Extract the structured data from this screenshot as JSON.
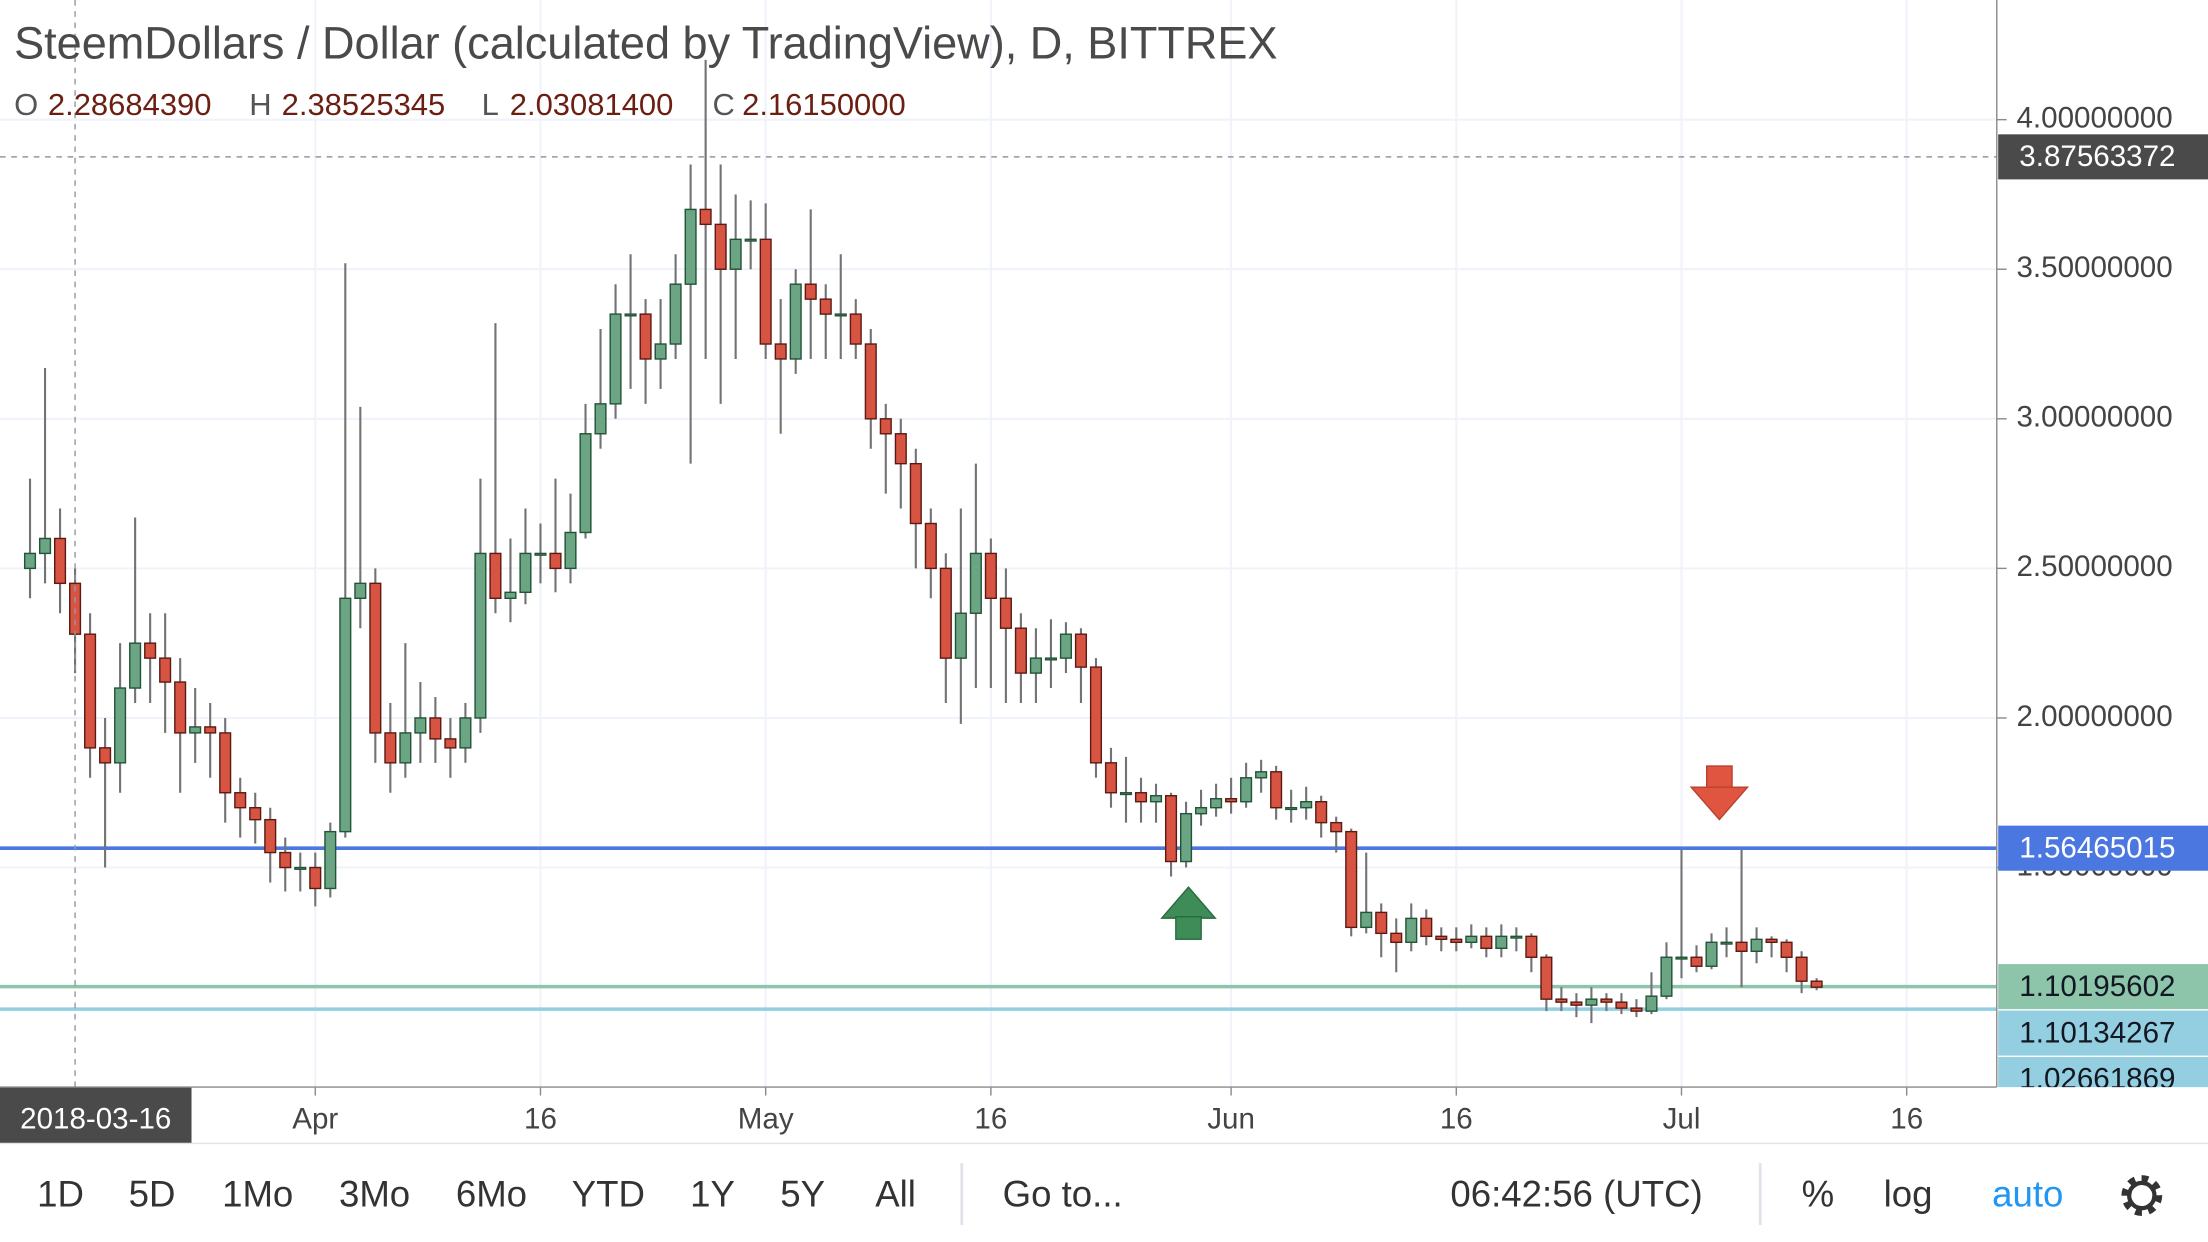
{
  "chart_data": {
    "type": "candlestick",
    "title": "SteemDollars / Dollar (calculated by TradingView), D, BITTREX",
    "ohlc_legend": {
      "labels": [
        "O",
        "H",
        "L",
        "C"
      ],
      "values": [
        {
          "value": 2.2868439,
          "label": "2.28684390"
        },
        {
          "value": 2.38525345,
          "label": "2.38525345"
        },
        {
          "value": 2.030814,
          "label": "2.03081400"
        },
        {
          "value": 2.1615,
          "label": "2.16150000"
        }
      ]
    },
    "x": [
      "2018-03-13",
      "2018-03-14",
      "2018-03-15",
      "2018-03-16",
      "2018-03-17",
      "2018-03-18",
      "2018-03-19",
      "2018-03-20",
      "2018-03-21",
      "2018-03-22",
      "2018-03-23",
      "2018-03-24",
      "2018-03-25",
      "2018-03-26",
      "2018-03-27",
      "2018-03-28",
      "2018-03-29",
      "2018-03-30",
      "2018-03-31",
      "2018-04-01",
      "2018-04-02",
      "2018-04-03",
      "2018-04-04",
      "2018-04-05",
      "2018-04-06",
      "2018-04-07",
      "2018-04-08",
      "2018-04-09",
      "2018-04-10",
      "2018-04-11",
      "2018-04-12",
      "2018-04-13",
      "2018-04-14",
      "2018-04-15",
      "2018-04-16",
      "2018-04-17",
      "2018-04-18",
      "2018-04-19",
      "2018-04-20",
      "2018-04-21",
      "2018-04-22",
      "2018-04-23",
      "2018-04-24",
      "2018-04-25",
      "2018-04-26",
      "2018-04-27",
      "2018-04-28",
      "2018-04-29",
      "2018-04-30",
      "2018-05-01",
      "2018-05-02",
      "2018-05-03",
      "2018-05-04",
      "2018-05-05",
      "2018-05-06",
      "2018-05-07",
      "2018-05-08",
      "2018-05-09",
      "2018-05-10",
      "2018-05-11",
      "2018-05-12",
      "2018-05-13",
      "2018-05-14",
      "2018-05-15",
      "2018-05-16",
      "2018-05-17",
      "2018-05-18",
      "2018-05-19",
      "2018-05-20",
      "2018-05-21",
      "2018-05-22",
      "2018-05-23",
      "2018-05-24",
      "2018-05-25",
      "2018-05-26",
      "2018-05-27",
      "2018-05-28",
      "2018-05-29",
      "2018-05-30",
      "2018-05-31",
      "2018-06-01",
      "2018-06-02",
      "2018-06-03",
      "2018-06-04",
      "2018-06-05",
      "2018-06-06",
      "2018-06-07",
      "2018-06-08",
      "2018-06-09",
      "2018-06-10",
      "2018-06-11",
      "2018-06-12",
      "2018-06-13",
      "2018-06-14",
      "2018-06-15",
      "2018-06-16",
      "2018-06-17",
      "2018-06-18",
      "2018-06-19",
      "2018-06-20",
      "2018-06-21",
      "2018-06-22",
      "2018-06-23",
      "2018-06-24",
      "2018-06-25",
      "2018-06-26",
      "2018-06-27",
      "2018-06-28",
      "2018-06-29",
      "2018-06-30",
      "2018-07-01",
      "2018-07-02",
      "2018-07-03",
      "2018-07-04",
      "2018-07-05",
      "2018-07-06",
      "2018-07-07",
      "2018-07-08",
      "2018-07-09",
      "2018-07-10"
    ],
    "open": [
      2.5,
      2.55,
      2.6,
      2.45,
      2.28,
      1.9,
      1.85,
      2.1,
      2.25,
      2.2,
      2.12,
      1.95,
      1.97,
      1.95,
      1.75,
      1.7,
      1.66,
      1.55,
      1.5,
      1.5,
      1.43,
      1.62,
      2.4,
      2.45,
      1.95,
      1.85,
      1.95,
      2.0,
      1.93,
      1.9,
      2.0,
      2.55,
      2.4,
      2.42,
      2.55,
      2.55,
      2.5,
      2.62,
      2.95,
      3.05,
      3.35,
      3.35,
      3.2,
      3.25,
      3.45,
      3.7,
      3.65,
      3.5,
      3.6,
      3.6,
      3.25,
      3.2,
      3.45,
      3.4,
      3.35,
      3.35,
      3.25,
      3.0,
      2.95,
      2.85,
      2.65,
      2.5,
      2.2,
      2.35,
      2.55,
      2.4,
      2.3,
      2.15,
      2.2,
      2.2,
      2.28,
      2.17,
      1.85,
      1.75,
      1.75,
      1.72,
      1.74,
      1.52,
      1.68,
      1.7,
      1.73,
      1.72,
      1.8,
      1.82,
      1.7,
      1.7,
      1.72,
      1.65,
      1.62,
      1.3,
      1.35,
      1.28,
      1.25,
      1.33,
      1.27,
      1.26,
      1.25,
      1.27,
      1.23,
      1.27,
      1.27,
      1.2,
      1.06,
      1.05,
      1.04,
      1.06,
      1.05,
      1.03,
      1.02,
      1.07,
      1.2,
      1.2,
      1.17,
      1.25,
      1.25,
      1.22,
      1.26,
      1.25,
      1.2,
      1.12
    ],
    "high": [
      2.8,
      3.17,
      2.7,
      2.5,
      2.35,
      2.0,
      2.25,
      2.67,
      2.35,
      2.35,
      2.2,
      2.1,
      2.05,
      2.0,
      1.8,
      1.75,
      1.7,
      1.6,
      1.55,
      1.55,
      1.65,
      3.52,
      3.04,
      2.5,
      2.05,
      2.25,
      2.12,
      2.07,
      2.0,
      2.05,
      2.8,
      3.32,
      2.6,
      2.7,
      2.65,
      2.8,
      2.75,
      3.05,
      3.3,
      3.45,
      3.55,
      3.4,
      3.4,
      3.55,
      3.85,
      4.2,
      3.85,
      3.75,
      3.73,
      3.72,
      3.4,
      3.5,
      3.7,
      3.45,
      3.55,
      3.4,
      3.3,
      3.05,
      3.0,
      2.9,
      2.7,
      2.55,
      2.7,
      2.85,
      2.6,
      2.5,
      2.35,
      2.3,
      2.33,
      2.32,
      2.3,
      2.2,
      1.9,
      1.87,
      1.8,
      1.78,
      1.75,
      1.72,
      1.76,
      1.78,
      1.8,
      1.85,
      1.86,
      1.84,
      1.76,
      1.77,
      1.74,
      1.67,
      1.63,
      1.55,
      1.38,
      1.33,
      1.38,
      1.36,
      1.3,
      1.3,
      1.31,
      1.3,
      1.31,
      1.3,
      1.28,
      1.21,
      1.1,
      1.08,
      1.1,
      1.08,
      1.08,
      1.06,
      1.15,
      1.25,
      1.56,
      1.24,
      1.28,
      1.3,
      1.56,
      1.3,
      1.27,
      1.26,
      1.22,
      1.13
    ],
    "low": [
      2.4,
      2.45,
      2.35,
      2.15,
      1.8,
      1.5,
      1.75,
      2.05,
      2.05,
      1.95,
      1.75,
      1.85,
      1.8,
      1.65,
      1.6,
      1.58,
      1.45,
      1.42,
      1.42,
      1.37,
      1.4,
      1.6,
      2.3,
      1.85,
      1.75,
      1.8,
      1.85,
      1.85,
      1.8,
      1.85,
      1.95,
      2.35,
      2.32,
      2.38,
      2.45,
      2.42,
      2.45,
      2.6,
      2.9,
      3.0,
      3.1,
      3.05,
      3.1,
      3.2,
      2.85,
      3.2,
      3.05,
      3.2,
      3.5,
      3.2,
      2.95,
      3.15,
      3.2,
      3.2,
      3.2,
      3.2,
      2.9,
      2.75,
      2.7,
      2.5,
      2.4,
      2.05,
      1.98,
      2.1,
      2.1,
      2.05,
      2.05,
      2.05,
      2.1,
      2.15,
      2.05,
      1.8,
      1.7,
      1.65,
      1.65,
      1.65,
      1.47,
      1.5,
      1.64,
      1.67,
      1.68,
      1.7,
      1.75,
      1.66,
      1.65,
      1.66,
      1.6,
      1.55,
      1.27,
      1.28,
      1.2,
      1.15,
      1.22,
      1.24,
      1.22,
      1.22,
      1.23,
      1.2,
      1.2,
      1.22,
      1.15,
      1.02,
      1.02,
      1.0,
      0.98,
      1.02,
      1.01,
      1.0,
      1.01,
      1.06,
      1.13,
      1.15,
      1.16,
      1.2,
      1.1,
      1.18,
      1.2,
      1.15,
      1.08,
      1.09
    ],
    "close": [
      2.55,
      2.6,
      2.45,
      2.28,
      1.9,
      1.85,
      2.1,
      2.25,
      2.2,
      2.12,
      1.95,
      1.97,
      1.95,
      1.75,
      1.7,
      1.66,
      1.55,
      1.5,
      1.5,
      1.43,
      1.62,
      2.4,
      2.45,
      1.95,
      1.85,
      1.95,
      2.0,
      1.93,
      1.9,
      2.0,
      2.55,
      2.4,
      2.42,
      2.55,
      2.55,
      2.5,
      2.62,
      2.95,
      3.05,
      3.35,
      3.35,
      3.2,
      3.25,
      3.45,
      3.7,
      3.65,
      3.5,
      3.6,
      3.6,
      3.25,
      3.2,
      3.45,
      3.4,
      3.35,
      3.35,
      3.25,
      3.0,
      2.95,
      2.85,
      2.65,
      2.5,
      2.2,
      2.35,
      2.55,
      2.4,
      2.3,
      2.15,
      2.2,
      2.2,
      2.28,
      2.17,
      1.85,
      1.75,
      1.75,
      1.72,
      1.74,
      1.52,
      1.68,
      1.7,
      1.73,
      1.72,
      1.8,
      1.82,
      1.7,
      1.7,
      1.72,
      1.65,
      1.62,
      1.3,
      1.35,
      1.28,
      1.25,
      1.33,
      1.27,
      1.26,
      1.25,
      1.27,
      1.23,
      1.27,
      1.27,
      1.2,
      1.06,
      1.05,
      1.04,
      1.06,
      1.05,
      1.03,
      1.02,
      1.07,
      1.2,
      1.2,
      1.17,
      1.25,
      1.25,
      1.22,
      1.26,
      1.25,
      1.2,
      1.12,
      1.1
    ],
    "up_color": "#6ba583",
    "up_border": "#225437",
    "down_color": "#d75442",
    "down_border": "#5b1a13",
    "wick_color": "#737375",
    "xlim": [
      "2018-03-11",
      "2018-07-22"
    ],
    "xticks": [
      {
        "value": "2018-04-01",
        "label": "Apr"
      },
      {
        "value": "2018-04-16",
        "label": "16"
      },
      {
        "value": "2018-05-01",
        "label": "May"
      },
      {
        "value": "2018-05-16",
        "label": "16"
      },
      {
        "value": "2018-06-01",
        "label": "Jun"
      },
      {
        "value": "2018-06-16",
        "label": "16"
      },
      {
        "value": "2018-07-01",
        "label": "Jul"
      },
      {
        "value": "2018-07-16",
        "label": "16"
      }
    ],
    "ylim": [
      0.766,
      4.4
    ],
    "yticks": [
      {
        "value": 4,
        "label": "4.00000000"
      },
      {
        "value": 3.5,
        "label": "3.50000000"
      },
      {
        "value": 3,
        "label": "3.00000000"
      },
      {
        "value": 2.5,
        "label": "2.50000000"
      },
      {
        "value": 2,
        "label": "2.00000000"
      },
      {
        "value": 1.5,
        "label": "1.50000000"
      }
    ],
    "grid": true,
    "log_scale": false,
    "cursor": {
      "x": "2018-03-16",
      "y": 3.87563372,
      "color": "#4a4a4a"
    },
    "hlines": [
      {
        "value": 1.56465015,
        "color": "#4a78e0"
      },
      {
        "value": 1.10195602,
        "color": "#8dc5ab"
      },
      {
        "value": 1.02661869,
        "color": "#93cfe0"
      }
    ],
    "last_price": {
      "value": 1.10134267,
      "color": "#93cfe0"
    }
  },
  "toolbar": {
    "ranges": [
      "1D",
      "5D",
      "1Mo",
      "3Mo",
      "6Mo",
      "YTD",
      "1Y",
      "5Y",
      "All"
    ],
    "goto": "Go to...",
    "clock": "06:42:56 (UTC)",
    "scale_options": [
      "%",
      "log",
      "auto"
    ]
  }
}
